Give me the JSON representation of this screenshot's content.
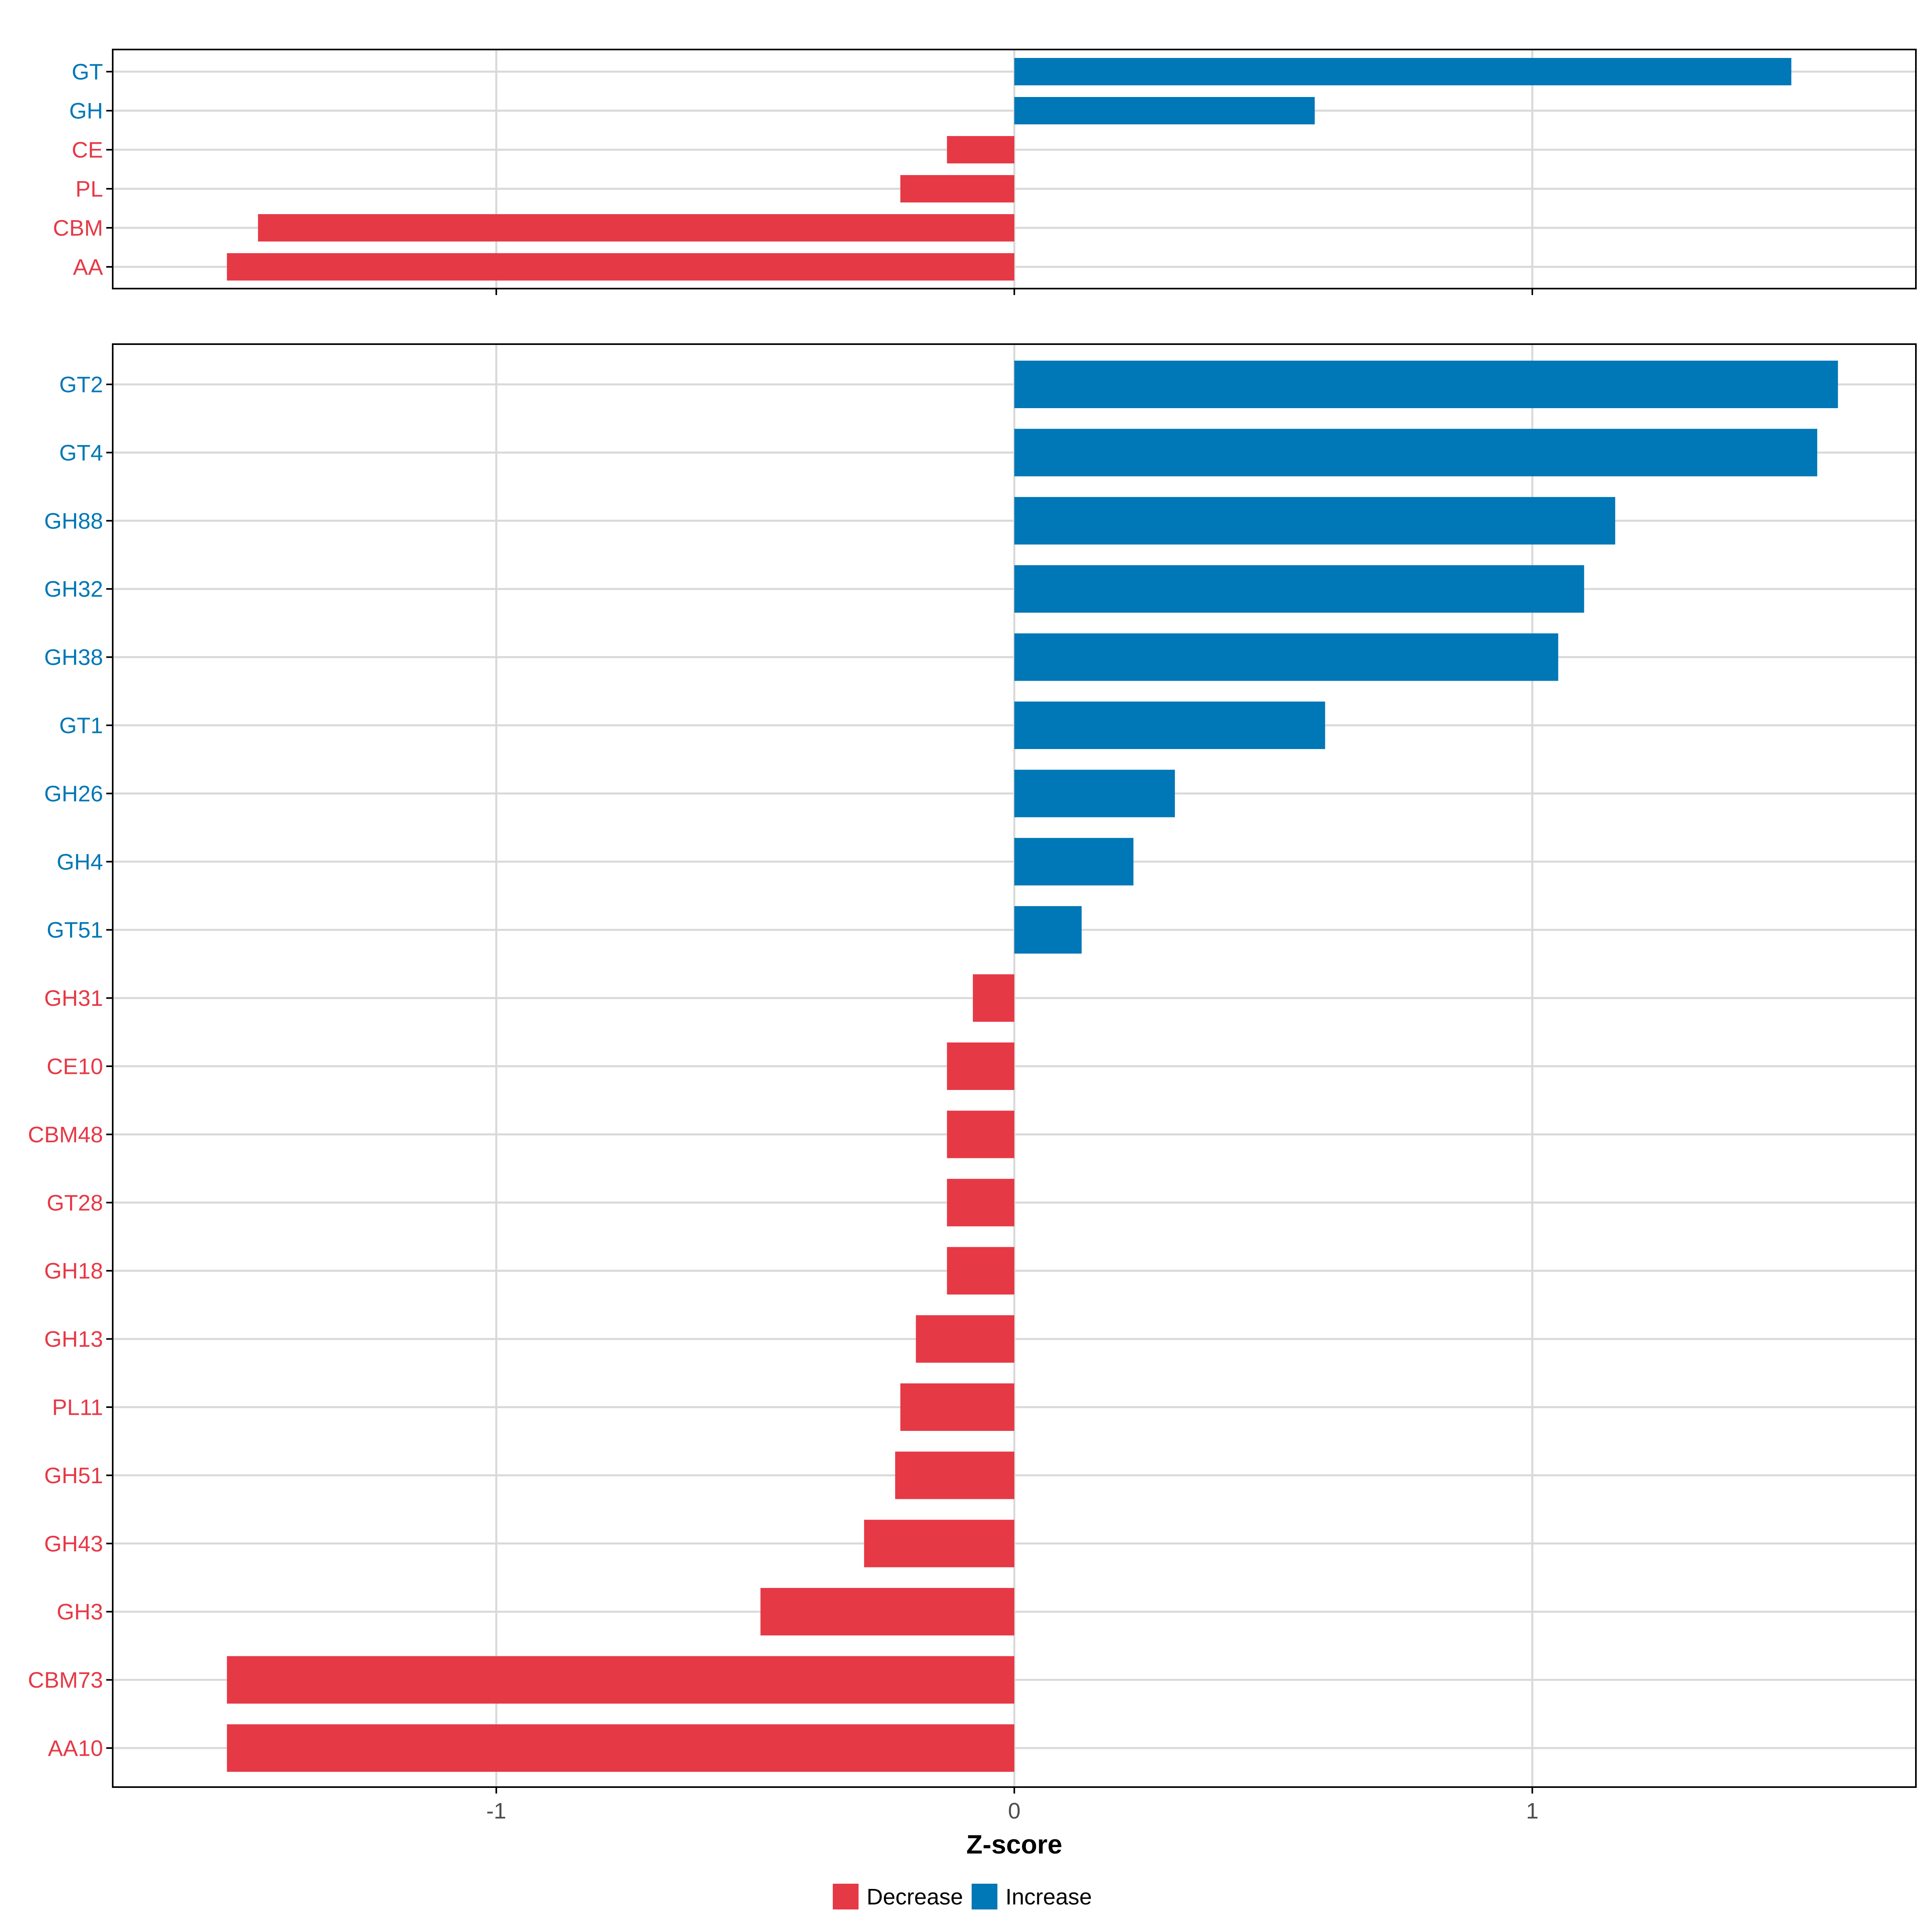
{
  "colors": {
    "decrease": "#E63946",
    "increase": "#0077B6",
    "grid": "#D9D9D9",
    "axis": "#000000",
    "tick_label": "#4D4D4D"
  },
  "chart_data": [
    {
      "type": "bar",
      "orientation": "horizontal",
      "panel": "top",
      "categories": [
        "GT",
        "GH",
        "CE",
        "PL",
        "CBM",
        "AA"
      ],
      "values": [
        1.5,
        0.58,
        -0.13,
        -0.22,
        -1.46,
        -1.52
      ],
      "xlim": [
        -1.75,
        1.75
      ],
      "x_ticks": [
        -1,
        0,
        1
      ],
      "grid": true
    },
    {
      "type": "bar",
      "orientation": "horizontal",
      "panel": "bottom",
      "categories": [
        "GT2",
        "GT4",
        "GH88",
        "GH32",
        "GH38",
        "GT1",
        "GH26",
        "GH4",
        "GT51",
        "GH31",
        "CE10",
        "CBM48",
        "GT28",
        "GH18",
        "GH13",
        "PL11",
        "GH51",
        "GH43",
        "GH3",
        "CBM73",
        "AA10"
      ],
      "values": [
        1.59,
        1.55,
        1.16,
        1.1,
        1.05,
        0.6,
        0.31,
        0.23,
        0.13,
        -0.08,
        -0.13,
        -0.13,
        -0.13,
        -0.13,
        -0.19,
        -0.22,
        -0.23,
        -0.29,
        -0.49,
        -1.52,
        -1.52
      ],
      "xlim": [
        -1.75,
        1.75
      ],
      "x_ticks": [
        -1,
        0,
        1
      ],
      "x_tick_labels": [
        "-1",
        "0",
        "1"
      ],
      "xlabel": "Z-score",
      "grid": true
    }
  ],
  "legend": {
    "position": "bottom",
    "items": [
      {
        "label": "Decrease",
        "color": "#E63946"
      },
      {
        "label": "Increase",
        "color": "#0077B6"
      }
    ]
  }
}
